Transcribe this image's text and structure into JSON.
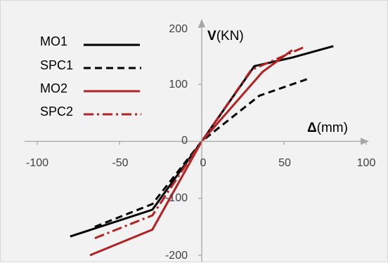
{
  "chart_data": {
    "type": "line",
    "xlabel_bold": "Δ",
    "xlabel_rest": "(mm)",
    "ylabel_bold": "V",
    "ylabel_rest": "(KN)",
    "xlim": [
      -100,
      100
    ],
    "ylim": [
      -200,
      200
    ],
    "xticks": [
      "-100",
      "-50",
      "0",
      "50",
      "100"
    ],
    "yticks": [
      "-200",
      "-100",
      "0",
      "100",
      "200"
    ],
    "grid": false,
    "legend_position": "top-left",
    "series": [
      {
        "name": "MO1",
        "color": "#000000",
        "dash": "solid",
        "x": [
          -80,
          -30,
          0,
          32,
          55,
          80
        ],
        "y": [
          -167,
          -120,
          0,
          132,
          147,
          167
        ]
      },
      {
        "name": "SPC1",
        "color": "#000000",
        "dash": "dashed",
        "x": [
          -65,
          -30,
          0,
          35,
          65
        ],
        "y": [
          -150,
          -110,
          0,
          80,
          110
        ]
      },
      {
        "name": "MO2",
        "color": "#b22222",
        "dash": "solid",
        "x": [
          -68,
          -30,
          0,
          37,
          55
        ],
        "y": [
          -200,
          -155,
          0,
          122,
          160
        ]
      },
      {
        "name": "SPC2",
        "color": "#b22222",
        "dash": "dashdot",
        "x": [
          -65,
          -30,
          0,
          30,
          62
        ],
        "y": [
          -170,
          -130,
          0,
          125,
          165
        ]
      }
    ]
  }
}
